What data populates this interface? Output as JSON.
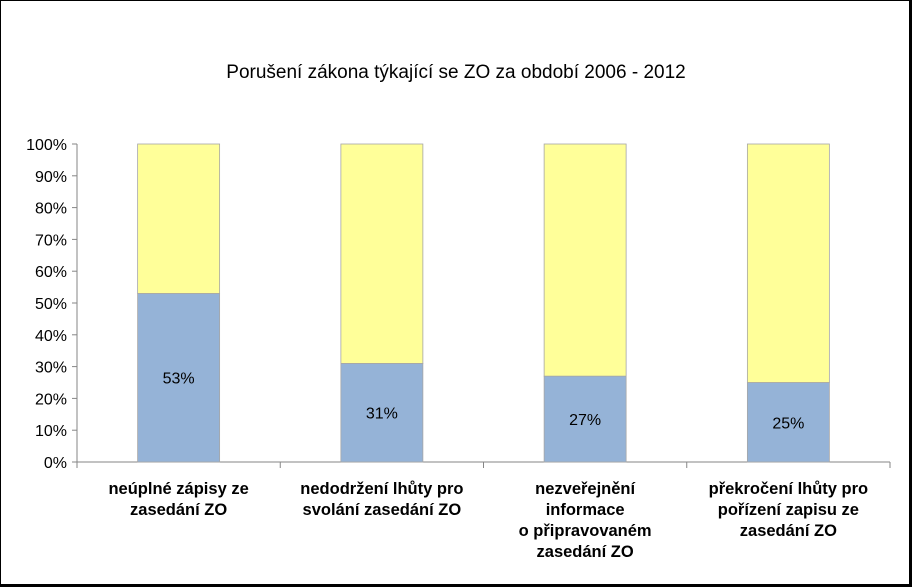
{
  "chart_data": {
    "type": "bar",
    "stacked_percent": true,
    "title": "Porušení zákona  týkající se ZO za období  2006 - 2012",
    "categories": [
      "neúplné zápisy ze\nzasedání ZO",
      "nedodržení lhůty pro\nsvolání zasedání ZO",
      "nezveřejnění\ninformace\no připravovaném\nzasedání ZO",
      "překročení lhůty pro\npořízení zapisu ze\nzasedání ZO"
    ],
    "series": [
      {
        "values": [
          53,
          31,
          27,
          25
        ],
        "data_labels": [
          "53%",
          "31%",
          "27%",
          "25%"
        ],
        "color": "#95b3d7"
      },
      {
        "values": [
          47,
          69,
          73,
          75
        ],
        "color": "#ffff99"
      }
    ],
    "y_ticks": [
      "0%",
      "10%",
      "20%",
      "30%",
      "40%",
      "50%",
      "60%",
      "70%",
      "80%",
      "90%",
      "100%"
    ],
    "ylim": [
      0,
      100
    ],
    "grid": false,
    "legend": "none"
  }
}
